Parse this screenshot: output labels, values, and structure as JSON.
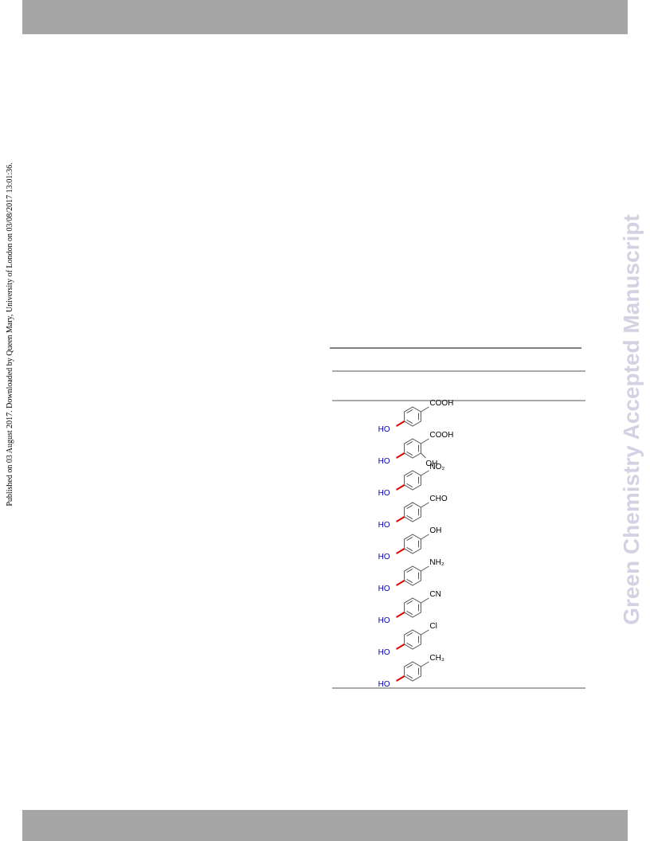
{
  "side_note": "Published on 03 August 2017. Downloaded by Queen Mary, University of London on 03/08/2017 13:01:36.",
  "watermark": "Green Chemistry Accepted Manuscript",
  "molecules": [
    {
      "hydroxyl": "HO",
      "substituent": "COOH"
    },
    {
      "hydroxyl": "HO",
      "substituent": "COOH",
      "extra": "OH"
    },
    {
      "hydroxyl": "HO",
      "substituent": "NO₂"
    },
    {
      "hydroxyl": "HO",
      "substituent": "CHO"
    },
    {
      "hydroxyl": "HO",
      "substituent": "OH"
    },
    {
      "hydroxyl": "HO",
      "substituent": "NH₂"
    },
    {
      "hydroxyl": "HO",
      "substituent": "CN"
    },
    {
      "hydroxyl": "HO",
      "substituent": "Cl"
    },
    {
      "hydroxyl": "HO",
      "substituent": "CH₃"
    }
  ]
}
